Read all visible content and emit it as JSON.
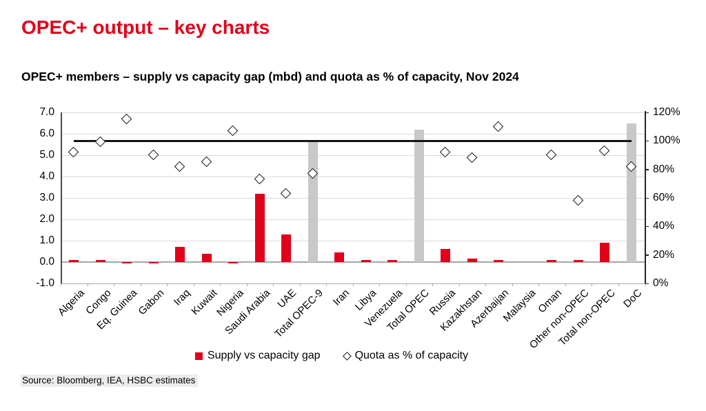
{
  "page": {
    "title": "OPEC+ output – key charts",
    "subtitle": "OPEC+ members – supply vs capacity gap (mbd) and quota as % of capacity, Nov 2024",
    "source": "Source: Bloomberg, IEA, HSBC estimates"
  },
  "colors": {
    "title_red": "#e10019",
    "bar_red": "#e10019",
    "total_gray": "#c8c8c8",
    "gridline": "#d9d9d9",
    "zero_line": "#a6a6a6",
    "reference_line": "#141414",
    "diamond_outline": "#141414"
  },
  "chart_data": {
    "type": "bar",
    "subtype": "combo-bar-scatter",
    "title": "OPEC+ members – supply vs capacity gap (mbd) and quota as % of capacity, Nov 2024",
    "categories": [
      "Algeria",
      "Congo",
      "Eq. Guinea",
      "Gabon",
      "Iraq",
      "Kuwait",
      "Nigeria",
      "Saudi Arabia",
      "UAE",
      "Total OPEC-9",
      "Iran",
      "Libya",
      "Venezuela",
      "Total OPEC",
      "Russia",
      "Kazakhstan",
      "Azerbaijan",
      "Malaysia",
      "Oman",
      "Other non-OPEC",
      "Total non-OPEC",
      "DoC"
    ],
    "series": [
      {
        "name": "Supply vs capacity gap",
        "type": "bar",
        "axis": "left",
        "unit": "mbd",
        "values": [
          0.1,
          0.1,
          -0.05,
          -0.05,
          0.7,
          0.4,
          -0.05,
          3.2,
          1.3,
          5.6,
          0.45,
          0.1,
          0.1,
          6.2,
          0.6,
          0.15,
          0.1,
          0.0,
          0.1,
          0.1,
          0.9,
          6.5
        ],
        "gray_total_categories": [
          "Total OPEC-9",
          "Total OPEC",
          "DoC"
        ]
      },
      {
        "name": "Quota as % of capacity",
        "type": "scatter",
        "marker": "diamond",
        "axis": "right",
        "unit": "%",
        "values": [
          92,
          99,
          115,
          90,
          82,
          85,
          107,
          73,
          63,
          77,
          null,
          null,
          null,
          null,
          92,
          88,
          110,
          null,
          90,
          58,
          93,
          82
        ]
      },
      {
        "name": "100% reference line",
        "type": "line",
        "axis": "right",
        "value": 100,
        "from_category": "Algeria",
        "to_category": "DoC"
      }
    ],
    "left_axis": {
      "min": -1.0,
      "max": 7.0,
      "step": 1.0,
      "ticks": [
        "7.0",
        "6.0",
        "5.0",
        "4.0",
        "3.0",
        "2.0",
        "1.0",
        "0.0",
        "-1.0"
      ]
    },
    "right_axis": {
      "min": 0,
      "max": 120,
      "step": 20,
      "ticks": [
        "120%",
        "100%",
        "80%",
        "60%",
        "40%",
        "20%",
        "0%"
      ]
    },
    "grid": true,
    "legend_position": "bottom"
  }
}
